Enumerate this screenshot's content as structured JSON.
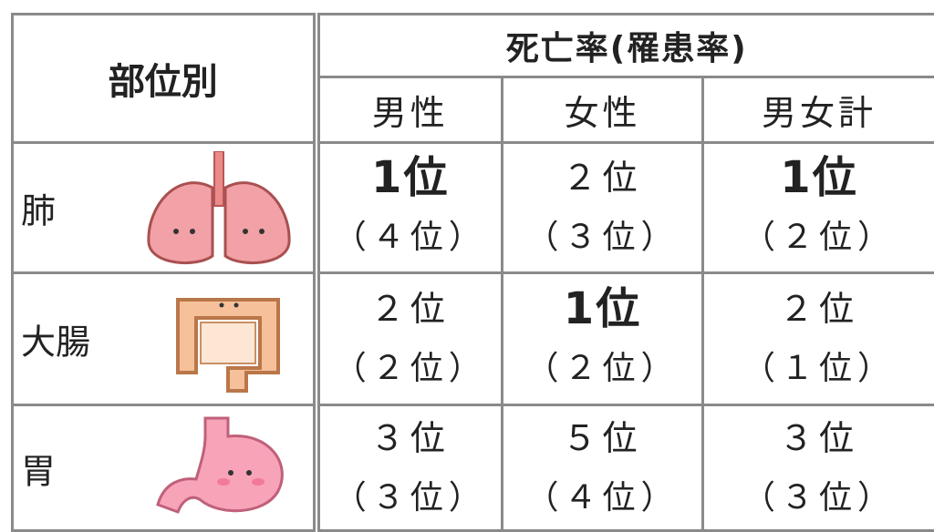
{
  "table": {
    "corner": "部位別",
    "group_header": "死亡率(罹患率)",
    "columns": [
      "男性",
      "女性",
      "男女計"
    ],
    "rows": [
      {
        "organ": "肺",
        "cells": [
          {
            "rank": "1位",
            "incidence": "（４位）",
            "bold": true
          },
          {
            "rank": "２位",
            "incidence": "（３位）",
            "bold": false
          },
          {
            "rank": "1位",
            "incidence": "（２位）",
            "bold": true
          }
        ]
      },
      {
        "organ": "大腸",
        "cells": [
          {
            "rank": "２位",
            "incidence": "（２位）",
            "bold": false
          },
          {
            "rank": "1位",
            "incidence": "（２位）",
            "bold": true
          },
          {
            "rank": "２位",
            "incidence": "（１位）",
            "bold": false
          }
        ]
      },
      {
        "organ": "胃",
        "cells": [
          {
            "rank": "３位",
            "incidence": "（３位）",
            "bold": false
          },
          {
            "rank": "５位",
            "incidence": "（４位）",
            "bold": false
          },
          {
            "rank": "３位",
            "incidence": "（３位）",
            "bold": false
          }
        ]
      }
    ]
  }
}
